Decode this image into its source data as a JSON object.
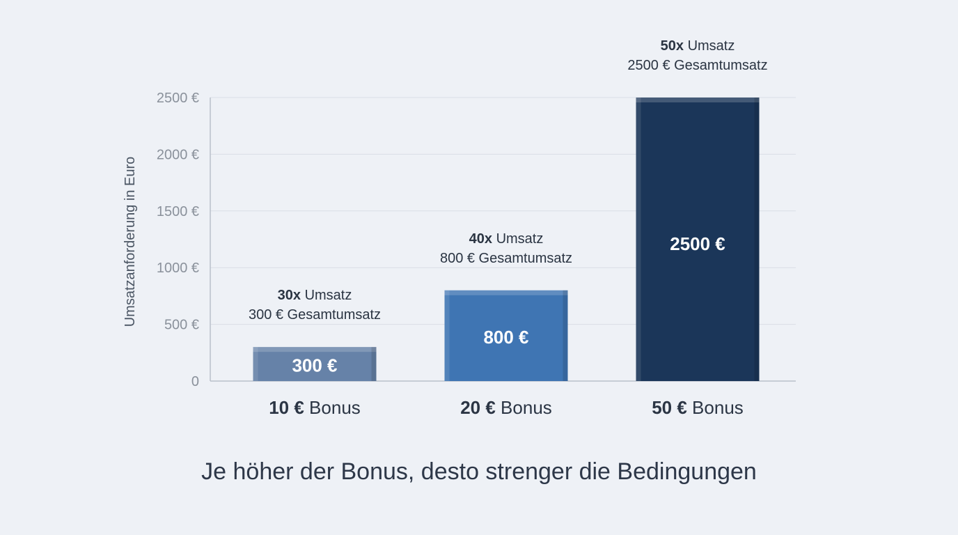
{
  "chart_data": {
    "type": "bar",
    "categories": [
      {
        "value_part": "10 €",
        "rest": " Bonus"
      },
      {
        "value_part": "20 €",
        "rest": " Bonus"
      },
      {
        "value_part": "50 €",
        "rest": " Bonus"
      }
    ],
    "values": [
      300,
      800,
      2500
    ],
    "value_labels": [
      "300 €",
      "800 €",
      "2500 €"
    ],
    "annotations": [
      {
        "multiplier": "30x",
        "line1_rest": " Umsatz",
        "line2": "300 € Gesamtumsatz"
      },
      {
        "multiplier": "40x",
        "line1_rest": " Umsatz",
        "line2": "800 € Gesamtumsatz"
      },
      {
        "multiplier": "50x",
        "line1_rest": " Umsatz",
        "line2": "2500 € Gesamtumsatz"
      }
    ],
    "bar_colors": [
      "#6682a8",
      "#3f75b3",
      "#1b3659"
    ],
    "ylabel": "Umsatzanforderung in Euro",
    "ylim": [
      0,
      2500
    ],
    "yticks": [
      0,
      500,
      1000,
      1500,
      2000,
      2500
    ],
    "ytick_labels": [
      "0",
      "500 €",
      "1000 €",
      "1500 €",
      "2000 €",
      "2500 €"
    ],
    "grid": true
  },
  "caption": "Je höher der Bonus, desto strenger die Bedingungen"
}
